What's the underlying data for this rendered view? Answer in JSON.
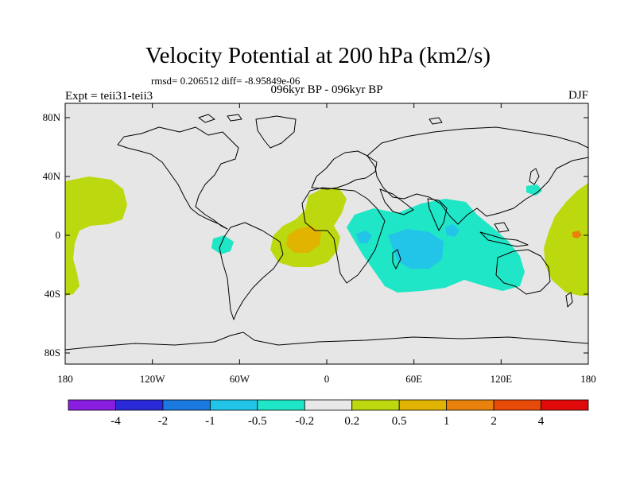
{
  "title": "Velocity Potential at 200 hPa (km2/s)",
  "stats": "rmsd= 0.206512 diff= -8.95849e-06",
  "left_label": "Expt = teii31-teii3",
  "center_label": "096kyr BP - 096kyr BP",
  "right_label": "DJF",
  "lat_ticks": [
    {
      "value": 80,
      "label": "80N"
    },
    {
      "value": 40,
      "label": "40N"
    },
    {
      "value": 0,
      "label": "0"
    },
    {
      "value": -40,
      "label": "40S"
    },
    {
      "value": -80,
      "label": "80S"
    }
  ],
  "lon_ticks": [
    {
      "value": -180,
      "label": "180"
    },
    {
      "value": -120,
      "label": "120W"
    },
    {
      "value": -60,
      "label": "60W"
    },
    {
      "value": 0,
      "label": "0"
    },
    {
      "value": 60,
      "label": "60E"
    },
    {
      "value": 120,
      "label": "120E"
    },
    {
      "value": 180,
      "label": "180"
    }
  ],
  "colorbar": {
    "colors": [
      "#8a1ee0",
      "#2a2ad8",
      "#1a7ae0",
      "#22c4e8",
      "#1fe6c6",
      "#e8e8e8",
      "#bcd80e",
      "#e0b400",
      "#e8820a",
      "#e84a0a",
      "#e00a0a"
    ],
    "labels": [
      "-4",
      "-2",
      "-1",
      "-0.5",
      "-0.2",
      "0.2",
      "0.5",
      "1",
      "2",
      "4"
    ]
  },
  "map_background": "#e6e6e6",
  "colors": {
    "positive_light": "#bcd80e",
    "positive_mid": "#e0b400",
    "positive_high": "#e8820a",
    "negative_light": "#1fe6c6",
    "negative_mid": "#22c4e8"
  }
}
